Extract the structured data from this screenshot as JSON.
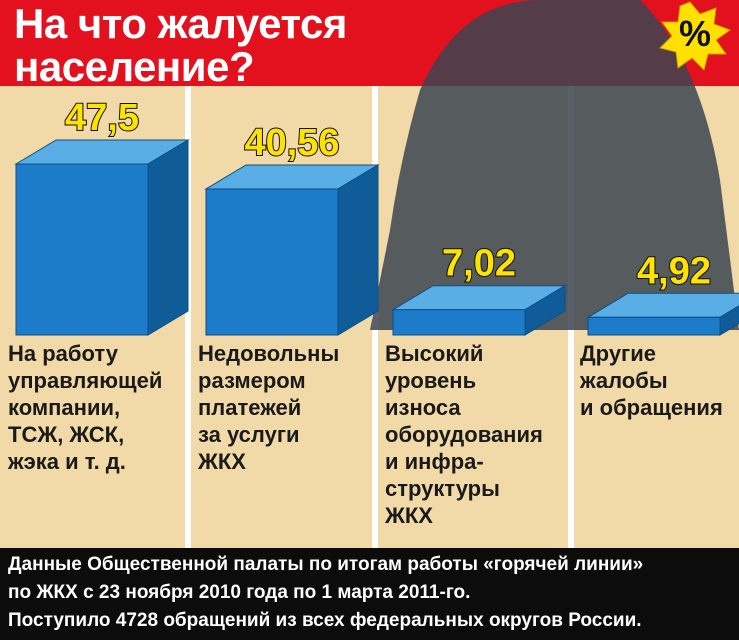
{
  "chart_data": {
    "type": "bar3d",
    "title": "На что жалуется\nнаселение?",
    "unit": "%",
    "categories": [
      "На работу\nуправляющей\nкомпании,\nТСЖ, ЖСК,\nжэка  и т. д.",
      "Недовольны\nразмером\nплатежей\nза услуги\nЖКХ",
      "Высокий\nуровень\nизноса\nоборудования\nи инфра-\nструктуры\nЖКХ",
      "Другие\nжалобы\nи обращения"
    ],
    "values": [
      47.5,
      40.56,
      7.02,
      4.92
    ],
    "value_labels": [
      "47,5",
      "40,56",
      "7,02",
      "4,92"
    ],
    "color": "#1c7cc9",
    "notes": [
      "Данные Общественной палаты по итогам работы «горячей линии»",
      "по ЖКХ с 23 ноября 2010 года по 1 марта 2011-го.",
      "Поступило 4728 обращений из всех федеральных округов России."
    ]
  }
}
